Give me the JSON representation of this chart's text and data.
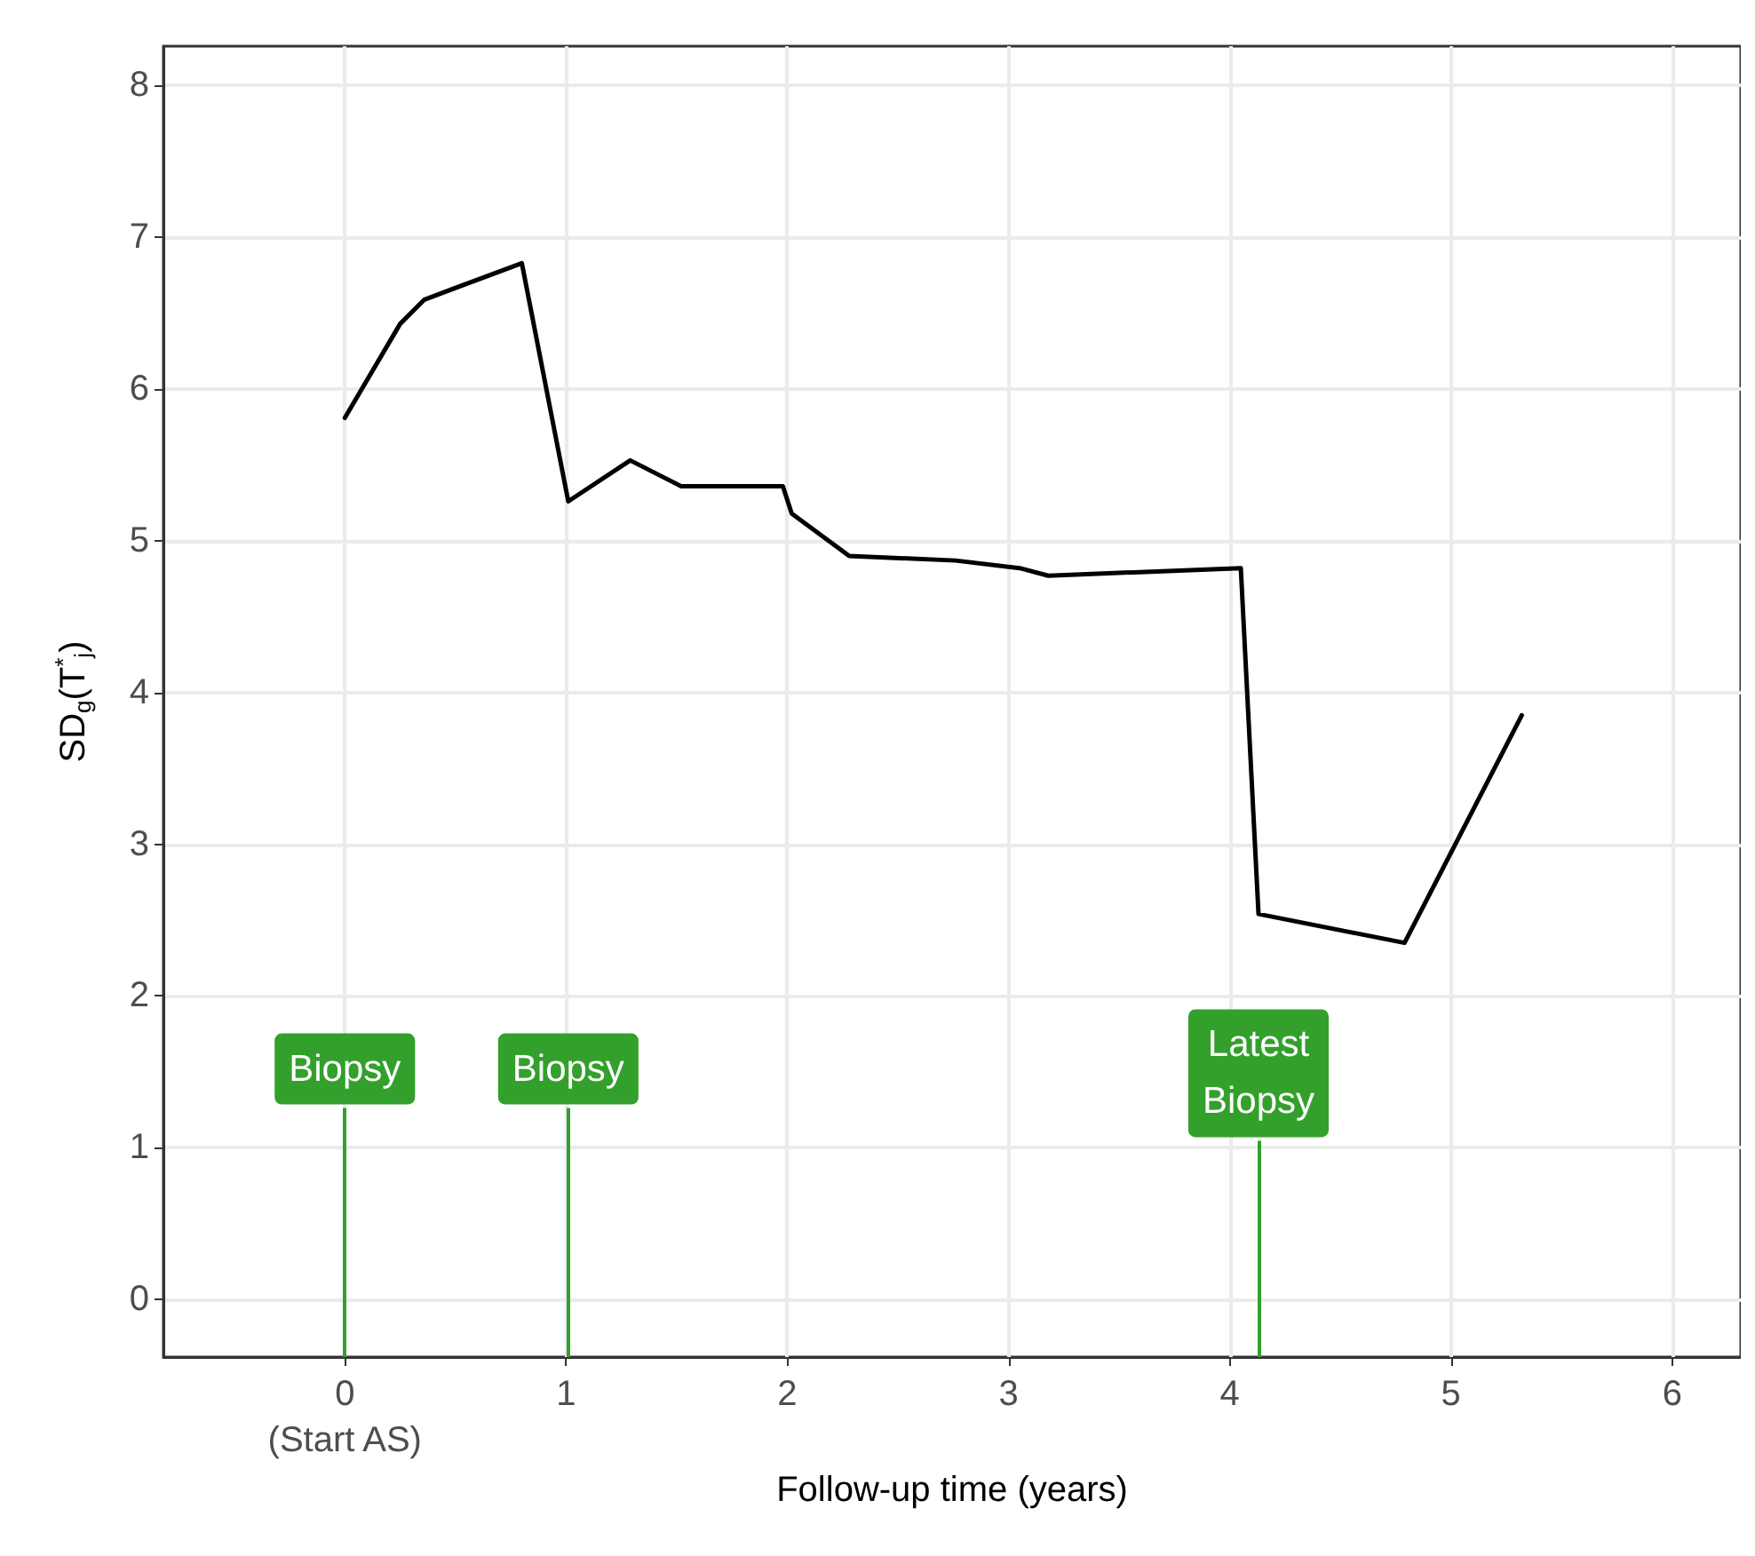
{
  "chart_data": {
    "type": "line",
    "xlabel": "Follow-up time (years)",
    "ylabel": "SD$_{g}$(T$^{*}$$_{j}$)",
    "x": [
      0,
      0.25,
      0.36,
      0.8,
      1.01,
      1.29,
      1.52,
      1.98,
      2.02,
      2.28,
      2.76,
      3.05,
      3.18,
      4.05,
      4.13,
      4.79,
      5.32
    ],
    "series": [
      {
        "color": "#000000",
        "values": [
          5.81,
          6.43,
          6.59,
          6.83,
          5.26,
          5.53,
          5.36,
          5.36,
          5.18,
          4.9,
          4.87,
          4.82,
          4.77,
          4.82,
          2.54,
          2.35,
          3.85
        ]
      }
    ],
    "xlim": [
      -0.82,
      6.31
    ],
    "ylim": [
      -0.38,
      8.26
    ],
    "xticks": [
      {
        "value": 0,
        "label": "0\n(Start AS)"
      },
      1,
      2,
      3,
      4,
      5,
      6
    ],
    "yticks": [
      0,
      1,
      2,
      3,
      4,
      5,
      6,
      7,
      8
    ],
    "ref_lines": [
      {
        "axis": "x",
        "value": 0,
        "label": "Biopsy",
        "color": "#33a02c"
      },
      {
        "axis": "x",
        "value": 1.01,
        "label": "Biopsy",
        "color": "#33a02c"
      },
      {
        "axis": "x",
        "value": 4.13,
        "label": "Latest\nBiopsy",
        "color": "#33a02c"
      }
    ],
    "grid": true,
    "marker": "none",
    "line_style": "solid"
  }
}
